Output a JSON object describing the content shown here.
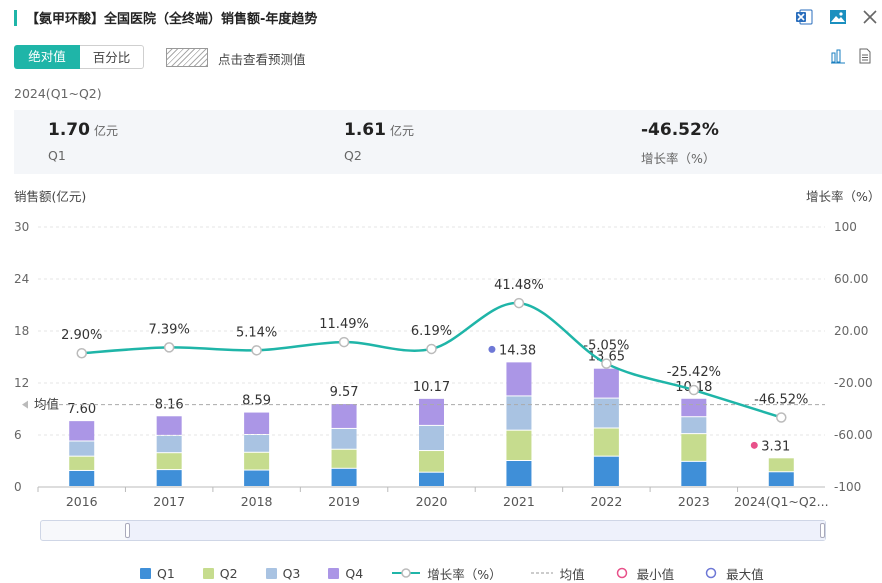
{
  "header": {
    "title": "【氨甲环酸】全国医院（全终端）销售额-年度趋势",
    "icons": [
      "excel-export-icon",
      "image-export-icon",
      "close-icon"
    ]
  },
  "toolbar": {
    "tabs": [
      {
        "label": "绝对值",
        "active": true
      },
      {
        "label": "百分比",
        "active": false
      }
    ],
    "forecast_label": "点击查看预测值",
    "icons": [
      "bar-chart-icon",
      "document-icon"
    ]
  },
  "summary": {
    "period": "2024(Q1~Q2)",
    "items": [
      {
        "value": "1.70",
        "unit": "亿元",
        "label": "Q1"
      },
      {
        "value": "1.61",
        "unit": "亿元",
        "label": "Q2"
      },
      {
        "value": "-46.52%",
        "unit": "",
        "label": "增长率（%）"
      }
    ]
  },
  "colors": {
    "accent": "#1fb5a8",
    "Q1": "#3f8fd8",
    "Q2": "#c6dc8e",
    "Q3": "#a9c3e2",
    "Q4": "#ab96e6",
    "min": "#e8518a",
    "max": "#6e78d6"
  },
  "chart_data": {
    "type": "bar",
    "stacked": true,
    "categories": [
      "2016",
      "2017",
      "2018",
      "2019",
      "2020",
      "2021",
      "2022",
      "2023",
      "2024(Q1~Q2..."
    ],
    "series": [
      {
        "name": "Q1",
        "values": [
          1.85,
          1.95,
          1.9,
          2.1,
          1.65,
          3.0,
          3.5,
          2.9,
          1.7
        ]
      },
      {
        "name": "Q2",
        "values": [
          1.65,
          1.95,
          2.05,
          2.2,
          2.5,
          3.5,
          3.25,
          3.2,
          1.61
        ]
      },
      {
        "name": "Q3",
        "values": [
          1.75,
          2.0,
          2.05,
          2.4,
          2.9,
          3.95,
          3.45,
          1.95,
          null
        ]
      },
      {
        "name": "Q4",
        "values": [
          2.35,
          2.26,
          2.59,
          2.87,
          3.12,
          3.93,
          3.45,
          2.13,
          null
        ]
      }
    ],
    "totals": [
      "7.60",
      "8.16",
      "8.59",
      "9.57",
      "10.17",
      "14.38",
      "13.65",
      "10.18",
      "3.31"
    ],
    "growth": {
      "name": "增长率（%）",
      "values": [
        2.9,
        7.39,
        5.14,
        11.49,
        6.19,
        41.48,
        -5.05,
        -25.42,
        -46.52
      ],
      "labels": [
        "2.90%",
        "7.39%",
        "5.14%",
        "11.49%",
        "6.19%",
        "41.48%",
        "-5.05%",
        "-25.42%",
        "-46.52%"
      ]
    },
    "average": {
      "label": "均值",
      "value": 9.51
    },
    "max_index": 5,
    "min_index": 8,
    "y_left": {
      "label": "销售额(亿元)",
      "ticks": [
        "0",
        "6",
        "12",
        "18",
        "24",
        "30"
      ],
      "range": [
        0,
        30
      ]
    },
    "y_right": {
      "label": "增长率（%）",
      "ticks": [
        "-100",
        "-60.00",
        "-20.00",
        "20.00",
        "60.00",
        "100"
      ],
      "range": [
        -100,
        100
      ]
    },
    "legend": [
      "Q1",
      "Q2",
      "Q3",
      "Q4",
      "增长率（%）",
      "均值",
      "最小值",
      "最大值"
    ]
  }
}
